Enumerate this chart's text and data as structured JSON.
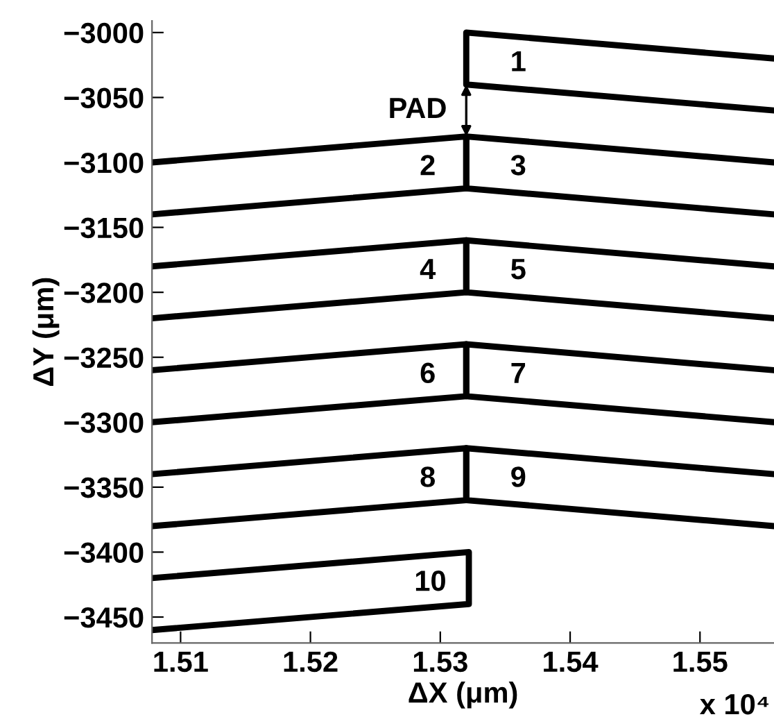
{
  "chart_data": {
    "type": "line",
    "xlabel": "ΔX (μm)",
    "ylabel": "ΔY (μm)",
    "xlim": [
      1.5078,
      1.5557
    ],
    "ylim": [
      -3470,
      -2991
    ],
    "xticks": [
      1.51,
      1.52,
      1.53,
      1.54,
      1.55
    ],
    "yticks": [
      {
        "value": -3000,
        "label": "−3000"
      },
      {
        "value": -3050,
        "label": "−3050"
      },
      {
        "value": -3100,
        "label": "−3100"
      },
      {
        "value": -3150,
        "label": "−3150"
      },
      {
        "value": -3200,
        "label": "−3200"
      },
      {
        "value": -3250,
        "label": "−3250"
      },
      {
        "value": -3300,
        "label": "−3300"
      },
      {
        "value": -3350,
        "label": "−3350"
      },
      {
        "value": -3400,
        "label": "−3400"
      },
      {
        "value": -3450,
        "label": "−3450"
      }
    ],
    "grid": false,
    "marker": "none",
    "line_style": "solid",
    "series": [
      {
        "name": "1",
        "color": "#000000",
        "x": [
          1.5557,
          1.532,
          1.532,
          1.5557
        ],
        "values": [
          -3020,
          -3000,
          -3040,
          -3060
        ]
      },
      {
        "name": "2",
        "color": "#000000",
        "x": [
          1.5078,
          1.532,
          1.532,
          1.5078
        ],
        "values": [
          -3100,
          -3080,
          -3120,
          -3140
        ]
      },
      {
        "name": "3",
        "color": "#000000",
        "x": [
          1.5557,
          1.532,
          1.532,
          1.5557
        ],
        "values": [
          -3100,
          -3080,
          -3120,
          -3140
        ]
      },
      {
        "name": "4",
        "color": "#000000",
        "x": [
          1.5078,
          1.532,
          1.532,
          1.5078
        ],
        "values": [
          -3180,
          -3160,
          -3200,
          -3220
        ]
      },
      {
        "name": "5",
        "color": "#000000",
        "x": [
          1.5557,
          1.532,
          1.532,
          1.5557
        ],
        "values": [
          -3180,
          -3160,
          -3200,
          -3220
        ]
      },
      {
        "name": "6",
        "color": "#000000",
        "x": [
          1.5078,
          1.532,
          1.532,
          1.5078
        ],
        "values": [
          -3260,
          -3240,
          -3280,
          -3300
        ]
      },
      {
        "name": "7",
        "color": "#000000",
        "x": [
          1.5557,
          1.532,
          1.532,
          1.5557
        ],
        "values": [
          -3260,
          -3240,
          -3280,
          -3300
        ]
      },
      {
        "name": "8",
        "color": "#000000",
        "x": [
          1.5078,
          1.532,
          1.532,
          1.5078
        ],
        "values": [
          -3340,
          -3320,
          -3360,
          -3380
        ]
      },
      {
        "name": "9",
        "color": "#000000",
        "x": [
          1.5557,
          1.532,
          1.532,
          1.5557
        ],
        "values": [
          -3340,
          -3320,
          -3360,
          -3380
        ]
      },
      {
        "name": "10",
        "color": "#000000",
        "x": [
          1.5078,
          1.5322,
          1.5322,
          1.5078
        ],
        "values": [
          -3420,
          -3400,
          -3440,
          -3460
        ]
      }
    ],
    "annotations": [
      "PAD",
      "x 10⁴"
    ]
  }
}
